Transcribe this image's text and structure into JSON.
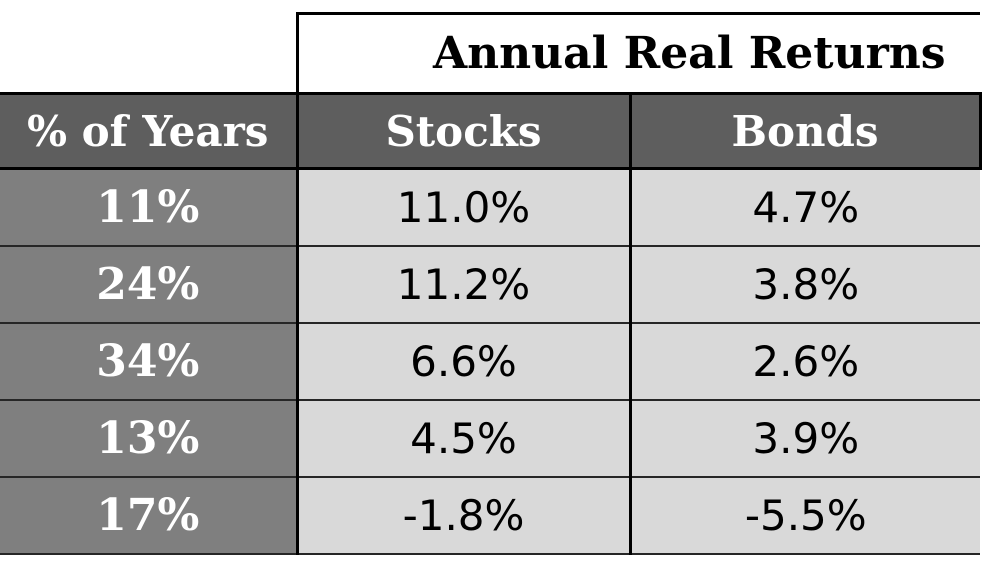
{
  "table": {
    "group_header": "Annual Real Returns",
    "columns": [
      "% of Years",
      "Stocks",
      "Bonds"
    ],
    "rows": [
      {
        "pct": "11%",
        "stocks": "11.0%",
        "bonds": "4.7%"
      },
      {
        "pct": "24%",
        "stocks": "11.2%",
        "bonds": "3.8%"
      },
      {
        "pct": "34%",
        "stocks": "6.6%",
        "bonds": "2.6%"
      },
      {
        "pct": "13%",
        "stocks": "4.5%",
        "bonds": "3.9%"
      },
      {
        "pct": "17%",
        "stocks": "-1.8%",
        "bonds": "-5.5%"
      }
    ]
  },
  "colors": {
    "header_dark": "#5e5e5e",
    "pct_column": "#7f7f7f",
    "value_cells": "#d9d9d9",
    "border": "#000000"
  }
}
